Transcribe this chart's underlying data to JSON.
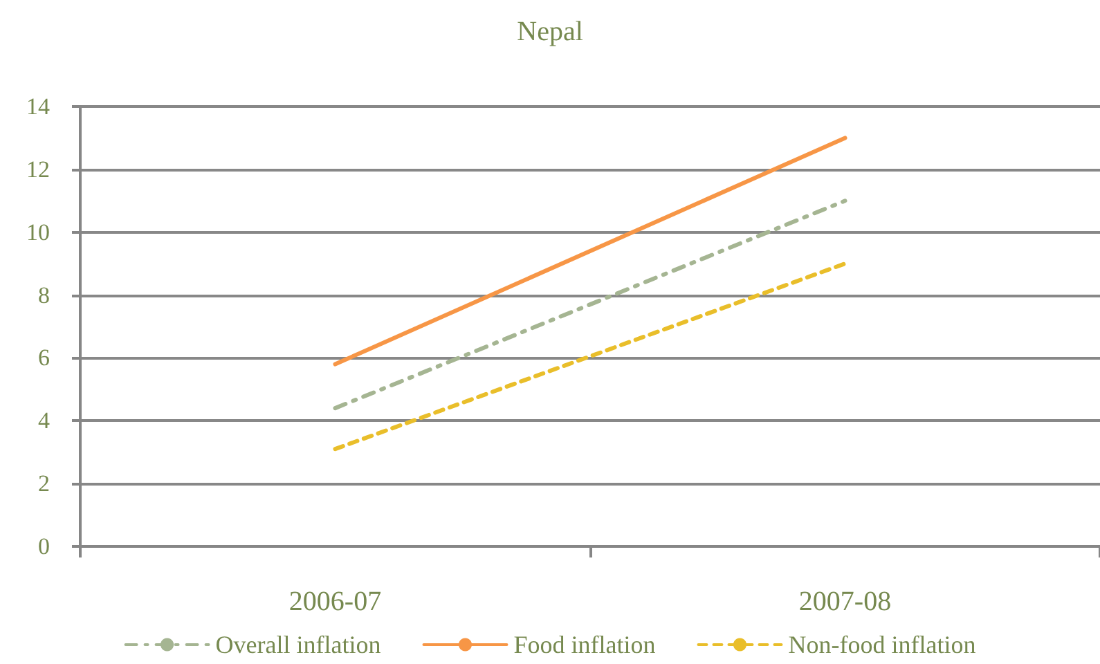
{
  "chart_data": {
    "type": "line",
    "title": "Nepal",
    "categories": [
      "2006-07",
      "2007-08"
    ],
    "series": [
      {
        "name": "Overall inflation",
        "color": "#a5b592",
        "values": [
          4.4,
          11.0
        ],
        "line_style": "dashdot"
      },
      {
        "name": "Food inflation",
        "color": "#f79646",
        "values": [
          5.8,
          13.0
        ],
        "line_style": "solid"
      },
      {
        "name": "Non-food inflation",
        "color": "#e9be2a",
        "values": [
          3.1,
          9.0
        ],
        "line_style": "dashed"
      }
    ],
    "ylim": [
      0,
      14
    ],
    "yticks": [
      0,
      2,
      4,
      6,
      8,
      10,
      12,
      14
    ],
    "grid": "y",
    "legend": "bottom",
    "marker": "none"
  }
}
